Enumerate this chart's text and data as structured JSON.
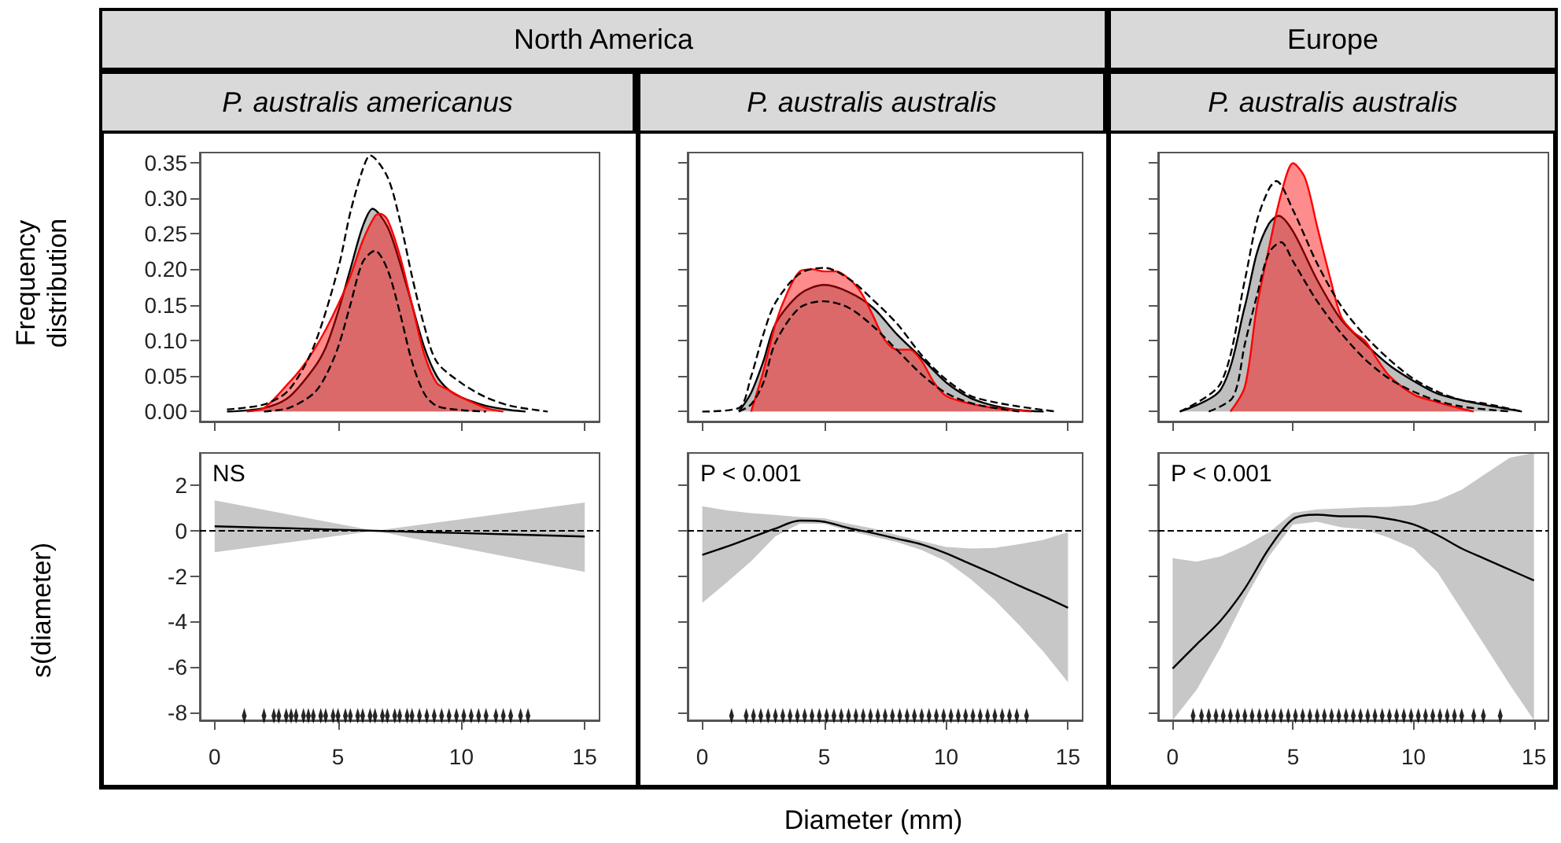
{
  "chart_data": [
    {
      "type": "area",
      "title": "North America",
      "subtitle": "P. australis americanus",
      "ylabel": "Frequency distribution",
      "xlim": [
        -0.6,
        15.6
      ],
      "xticks": [
        0,
        5,
        10,
        15
      ],
      "ylim": [
        -0.014,
        0.364
      ],
      "yticks": [
        {
          "value": 0,
          "label": "0.00"
        },
        {
          "value": 0.05,
          "label": "0.05"
        },
        {
          "value": 0.1,
          "label": "0.10"
        },
        {
          "value": 0.15,
          "label": "0.15"
        },
        {
          "value": 0.2,
          "label": "0.20"
        },
        {
          "value": 0.25,
          "label": "0.25"
        },
        {
          "value": 0.3,
          "label": "0.30"
        },
        {
          "value": 0.35,
          "label": "0.35"
        }
      ],
      "tick_labels": "y",
      "series": [
        {
          "color": "#000000",
          "x": [
            0.5,
            2,
            3,
            4,
            4.5,
            5,
            5.5,
            6,
            6.4,
            7,
            7.5,
            8,
            8.5,
            9,
            9.5,
            10,
            11,
            12,
            12.6
          ],
          "values": [
            0,
            0.005,
            0.02,
            0.06,
            0.09,
            0.14,
            0.2,
            0.26,
            0.285,
            0.26,
            0.21,
            0.15,
            0.09,
            0.05,
            0.03,
            0.02,
            0.008,
            0.002,
            0
          ]
        },
        {
          "color": "#ff0000",
          "x": [
            1.3,
            2,
            3,
            3.5,
            4,
            4.5,
            5,
            5.5,
            6,
            6.5,
            6.7,
            7,
            7.5,
            8,
            8.5,
            9,
            9.5,
            10,
            11,
            11.7
          ],
          "values": [
            0,
            0.005,
            0.04,
            0.06,
            0.085,
            0.115,
            0.15,
            0.19,
            0.24,
            0.275,
            0.278,
            0.27,
            0.22,
            0.15,
            0.08,
            0.04,
            0.03,
            0.02,
            0.005,
            0
          ]
        },
        {
          "type": "line",
          "line_style": "dashed",
          "color": "#000000",
          "x": [
            0.5,
            2,
            3,
            4,
            5,
            5.5,
            6,
            6.3,
            7,
            7.5,
            8,
            8.5,
            9,
            10,
            11,
            12,
            13.5
          ],
          "values": [
            0.003,
            0.01,
            0.03,
            0.09,
            0.2,
            0.28,
            0.34,
            0.36,
            0.33,
            0.27,
            0.19,
            0.12,
            0.07,
            0.04,
            0.02,
            0.008,
            0
          ]
        },
        {
          "type": "line",
          "line_style": "dashed",
          "color": "#000000",
          "x": [
            2,
            3,
            4,
            4.5,
            5,
            5.5,
            6,
            6.5,
            7,
            7.5,
            8,
            8.5,
            9,
            10,
            11
          ],
          "values": [
            0,
            0.005,
            0.025,
            0.05,
            0.09,
            0.15,
            0.21,
            0.226,
            0.2,
            0.14,
            0.07,
            0.025,
            0.008,
            0.002,
            0
          ]
        }
      ]
    },
    {
      "type": "area",
      "subtitle": "P. australis australis",
      "xlim": [
        -0.6,
        15.6
      ],
      "xticks": [
        0,
        5,
        10,
        15
      ],
      "ylim": [
        -0.014,
        0.364
      ],
      "yticks": [
        0,
        0.05,
        0.1,
        0.15,
        0.2,
        0.25,
        0.3,
        0.35
      ],
      "tick_labels": false,
      "series": [
        {
          "color": "#000000",
          "x": [
            1.5,
            2,
            2.5,
            3,
            4,
            5,
            6,
            7,
            8,
            9,
            10,
            11,
            12,
            13,
            14
          ],
          "values": [
            0,
            0.026,
            0.07,
            0.123,
            0.165,
            0.178,
            0.168,
            0.146,
            0.108,
            0.075,
            0.041,
            0.019,
            0.008,
            0.002,
            0
          ]
        },
        {
          "color": "#ff0000",
          "x": [
            2,
            2.5,
            3,
            3.5,
            4,
            4.5,
            5,
            5.5,
            6,
            6.5,
            7,
            7.5,
            8,
            8.5,
            9,
            9.5,
            10,
            11,
            12,
            13.5
          ],
          "values": [
            0,
            0.056,
            0.123,
            0.168,
            0.197,
            0.2,
            0.197,
            0.197,
            0.187,
            0.168,
            0.135,
            0.1,
            0.087,
            0.087,
            0.071,
            0.041,
            0.022,
            0.011,
            0.005,
            0
          ]
        },
        {
          "type": "line",
          "line_style": "dashed",
          "color": "#000000",
          "x": [
            0,
            1.5,
            2,
            2.5,
            3,
            4,
            5,
            6,
            7,
            8,
            9,
            10,
            11,
            12,
            13,
            14.5
          ],
          "values": [
            0,
            0.005,
            0.049,
            0.108,
            0.153,
            0.194,
            0.202,
            0.187,
            0.157,
            0.123,
            0.079,
            0.045,
            0.022,
            0.013,
            0.007,
            0
          ]
        },
        {
          "type": "line",
          "line_style": "dashed",
          "color": "#000000",
          "x": [
            1.5,
            2,
            2.5,
            3,
            4,
            5,
            6,
            7,
            8,
            9,
            10,
            11,
            12,
            13
          ],
          "values": [
            0,
            0.01,
            0.04,
            0.097,
            0.146,
            0.155,
            0.146,
            0.12,
            0.086,
            0.052,
            0.026,
            0.012,
            0.005,
            0
          ]
        }
      ]
    },
    {
      "type": "area",
      "title": "Europe",
      "subtitle": "P. australis australis",
      "xlim": [
        -0.6,
        15.6
      ],
      "xticks": [
        0,
        5,
        10,
        15
      ],
      "ylim": [
        -0.014,
        0.364
      ],
      "yticks": [
        0,
        0.05,
        0.1,
        0.15,
        0.2,
        0.25,
        0.3,
        0.35
      ],
      "tick_labels": false,
      "series": [
        {
          "color": "#000000",
          "x": [
            0.3,
            2,
            3,
            3.5,
            4,
            4.4,
            5,
            6,
            7,
            8,
            9,
            10,
            11,
            12,
            13,
            14.5
          ],
          "values": [
            0,
            0.031,
            0.148,
            0.223,
            0.264,
            0.275,
            0.253,
            0.185,
            0.129,
            0.095,
            0.065,
            0.043,
            0.025,
            0.016,
            0.009,
            0
          ]
        },
        {
          "color": "#ff0000",
          "x": [
            2.4,
            3,
            3.5,
            4,
            4.5,
            5,
            5.5,
            6,
            6.5,
            7,
            7.5,
            8,
            8.5,
            9,
            10,
            11,
            12,
            12.5
          ],
          "values": [
            0,
            0.035,
            0.148,
            0.23,
            0.305,
            0.349,
            0.328,
            0.26,
            0.193,
            0.133,
            0.112,
            0.099,
            0.073,
            0.05,
            0.024,
            0.013,
            0.004,
            0
          ]
        },
        {
          "type": "line",
          "line_style": "dashed",
          "color": "#000000",
          "x": [
            0.3,
            2,
            3,
            3.5,
            4,
            4.3,
            5,
            6,
            7,
            8,
            9,
            10,
            11,
            12,
            13,
            14.5
          ],
          "values": [
            0,
            0.04,
            0.185,
            0.268,
            0.313,
            0.324,
            0.283,
            0.208,
            0.148,
            0.106,
            0.073,
            0.046,
            0.028,
            0.016,
            0.011,
            0
          ]
        },
        {
          "type": "line",
          "line_style": "dashed",
          "color": "#000000",
          "x": [
            1.5,
            2.5,
            3,
            3.5,
            4,
            4.5,
            5,
            6,
            7,
            8,
            9,
            10,
            11,
            12,
            13,
            14
          ],
          "values": [
            0,
            0.02,
            0.095,
            0.163,
            0.223,
            0.238,
            0.211,
            0.155,
            0.11,
            0.073,
            0.046,
            0.028,
            0.015,
            0.007,
            0.003,
            0
          ]
        }
      ]
    },
    {
      "type": "line",
      "ylabel": "s(diameter)",
      "annotations": [
        "NS"
      ],
      "xlim": [
        -0.6,
        15.6
      ],
      "xticks": [
        0,
        5,
        10,
        15
      ],
      "ylim": [
        -8.35,
        3.43
      ],
      "yticks": [
        -8,
        -6,
        -4,
        -2,
        0,
        2
      ],
      "ref_lines": [
        {
          "axis": "y",
          "value": 0,
          "line_style": "dashed"
        }
      ],
      "series": [
        {
          "color": "#000000",
          "x": [
            0,
            3,
            6.5,
            10,
            15
          ],
          "values": [
            0.2,
            0.11,
            0,
            -0.1,
            -0.25
          ],
          "lower": [
            -0.94,
            -0.51,
            0,
            -0.75,
            -1.81
          ],
          "upper": [
            1.34,
            0.72,
            0,
            0.51,
            1.25
          ]
        },
        {
          "type": "scatter",
          "color": "#000000",
          "x": [
            1.2,
            2.0,
            2.4,
            2.6,
            2.9,
            3.1,
            3.3,
            3.6,
            3.8,
            4.0,
            4.3,
            4.5,
            4.8,
            5.0,
            5.3,
            5.5,
            5.8,
            6.0,
            6.3,
            6.5,
            6.8,
            7.0,
            7.3,
            7.5,
            7.8,
            8.0,
            8.3,
            8.6,
            8.9,
            9.2,
            9.5,
            9.8,
            10.1,
            10.4,
            10.7,
            11.0,
            11.4,
            11.7,
            12.0,
            12.4,
            12.7
          ],
          "values": [
            -8.15,
            -8.15,
            -8.15,
            -8.15,
            -8.15,
            -8.15,
            -8.15,
            -8.15,
            -8.15,
            -8.15,
            -8.15,
            -8.15,
            -8.15,
            -8.15,
            -8.15,
            -8.15,
            -8.15,
            -8.15,
            -8.15,
            -8.15,
            -8.15,
            -8.15,
            -8.15,
            -8.15,
            -8.15,
            -8.15,
            -8.15,
            -8.15,
            -8.15,
            -8.15,
            -8.15,
            -8.15,
            -8.15,
            -8.15,
            -8.15,
            -8.15,
            -8.15,
            -8.15,
            -8.15,
            -8.15,
            -8.15
          ]
        }
      ]
    },
    {
      "type": "line",
      "xlabel": "Diameter (mm)",
      "annotations": [
        "P < 0.001"
      ],
      "xlim": [
        -0.6,
        15.6
      ],
      "xticks": [
        0,
        5,
        10,
        15
      ],
      "ylim": [
        -8.35,
        3.43
      ],
      "yticks": [
        -8,
        -6,
        -4,
        -2,
        0,
        2
      ],
      "tick_labels": "x",
      "ref_lines": [
        {
          "axis": "y",
          "value": 0,
          "line_style": "dashed"
        }
      ],
      "series": [
        {
          "color": "#000000",
          "x": [
            0,
            1,
            2,
            3,
            4,
            5,
            6,
            7,
            8,
            9,
            10,
            11,
            12,
            13,
            14,
            15
          ],
          "values": [
            -1.06,
            -0.7,
            -0.3,
            0.1,
            0.45,
            0.4,
            0.12,
            -0.1,
            -0.35,
            -0.6,
            -0.99,
            -1.46,
            -1.93,
            -2.42,
            -2.89,
            -3.39
          ],
          "lower": [
            -3.18,
            -2.28,
            -1.34,
            -0.24,
            0.31,
            0.31,
            0,
            -0.25,
            -0.5,
            -0.85,
            -1.34,
            -2.12,
            -3.06,
            -4.16,
            -5.34,
            -6.68
          ],
          "upper": [
            1.08,
            0.9,
            0.78,
            0.7,
            0.61,
            0.55,
            0.31,
            0.1,
            -0.19,
            -0.45,
            -0.71,
            -0.78,
            -0.75,
            -0.59,
            -0.4,
            -0.05
          ]
        },
        {
          "type": "scatter",
          "color": "#000000",
          "x": [
            1.2,
            1.8,
            2.1,
            2.4,
            2.7,
            3.0,
            3.3,
            3.6,
            3.9,
            4.2,
            4.5,
            4.8,
            5.1,
            5.4,
            5.7,
            6.0,
            6.3,
            6.6,
            6.9,
            7.2,
            7.5,
            7.8,
            8.1,
            8.4,
            8.7,
            9.0,
            9.3,
            9.6,
            9.9,
            10.2,
            10.5,
            10.8,
            11.1,
            11.4,
            11.7,
            12.0,
            12.3,
            12.6,
            12.9,
            13.3
          ],
          "values": [
            -8.15,
            -8.15,
            -8.15,
            -8.15,
            -8.15,
            -8.15,
            -8.15,
            -8.15,
            -8.15,
            -8.15,
            -8.15,
            -8.15,
            -8.15,
            -8.15,
            -8.15,
            -8.15,
            -8.15,
            -8.15,
            -8.15,
            -8.15,
            -8.15,
            -8.15,
            -8.15,
            -8.15,
            -8.15,
            -8.15,
            -8.15,
            -8.15,
            -8.15,
            -8.15,
            -8.15,
            -8.15,
            -8.15,
            -8.15,
            -8.15,
            -8.15,
            -8.15,
            -8.15,
            -8.15,
            -8.15
          ]
        }
      ]
    },
    {
      "type": "line",
      "annotations": [
        "P < 0.001"
      ],
      "xlim": [
        -0.6,
        15.6
      ],
      "xticks": [
        0,
        5,
        10,
        15
      ],
      "ylim": [
        -8.35,
        3.43
      ],
      "yticks": [
        -8,
        -6,
        -4,
        -2,
        0,
        2
      ],
      "tick_labels": "x",
      "ref_lines": [
        {
          "axis": "y",
          "value": 0,
          "line_style": "dashed"
        }
      ],
      "series": [
        {
          "color": "#000000",
          "x": [
            0,
            1,
            2,
            3,
            4,
            5,
            6,
            7,
            8,
            9,
            10,
            11,
            12,
            13,
            14,
            15
          ],
          "values": [
            -6.07,
            -5.0,
            -3.95,
            -2.54,
            -0.78,
            0.52,
            0.71,
            0.64,
            0.64,
            0.52,
            0.28,
            -0.19,
            -0.78,
            -1.25,
            -1.72,
            -2.19
          ],
          "lower": [
            -8.35,
            -7.0,
            -5.13,
            -3.01,
            -1.13,
            0.28,
            0.4,
            0.16,
            0.05,
            -0.31,
            -0.78,
            -1.84,
            -3.48,
            -5.13,
            -6.78,
            -8.35
          ],
          "upper": [
            -1.2,
            -1.36,
            -1.13,
            -0.66,
            -0.07,
            0.8,
            0.94,
            0.99,
            1.04,
            1.06,
            1.13,
            1.34,
            1.81,
            2.52,
            3.22,
            3.43
          ]
        },
        {
          "type": "scatter",
          "color": "#000000",
          "x": [
            0.85,
            1.2,
            1.5,
            1.8,
            2.1,
            2.4,
            2.7,
            3.0,
            3.3,
            3.6,
            3.9,
            4.2,
            4.5,
            4.8,
            5.1,
            5.4,
            5.7,
            6.0,
            6.3,
            6.6,
            6.9,
            7.2,
            7.5,
            7.8,
            8.1,
            8.4,
            8.7,
            9.0,
            9.3,
            9.6,
            9.9,
            10.2,
            10.5,
            10.8,
            11.1,
            11.4,
            11.7,
            12.0,
            12.5,
            12.9,
            13.6
          ],
          "values": [
            -8.15,
            -8.15,
            -8.15,
            -8.15,
            -8.15,
            -8.15,
            -8.15,
            -8.15,
            -8.15,
            -8.15,
            -8.15,
            -8.15,
            -8.15,
            -8.15,
            -8.15,
            -8.15,
            -8.15,
            -8.15,
            -8.15,
            -8.15,
            -8.15,
            -8.15,
            -8.15,
            -8.15,
            -8.15,
            -8.15,
            -8.15,
            -8.15,
            -8.15,
            -8.15,
            -8.15,
            -8.15,
            -8.15,
            -8.15,
            -8.15,
            -8.15,
            -8.15,
            -8.15,
            -8.15,
            -8.15,
            -8.15
          ]
        }
      ]
    }
  ]
}
